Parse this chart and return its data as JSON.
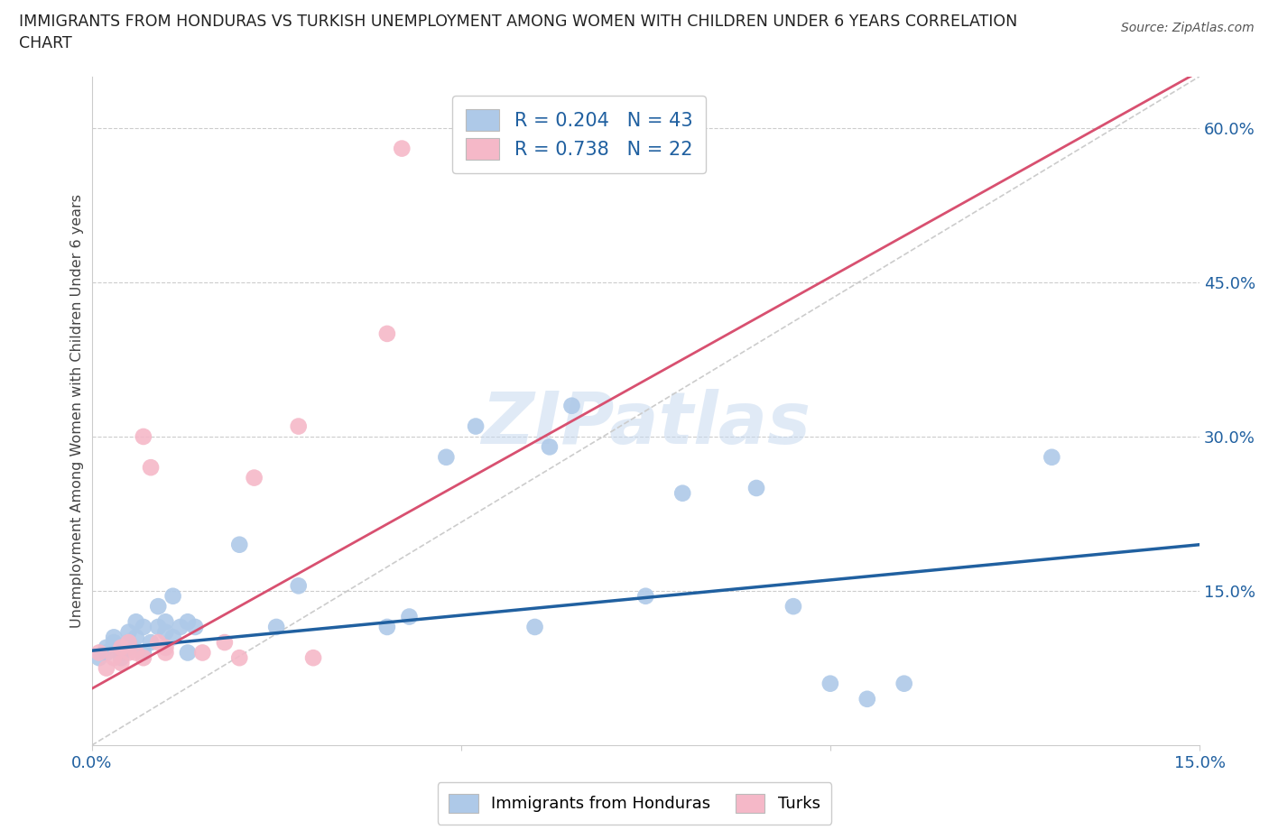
{
  "title_line1": "IMMIGRANTS FROM HONDURAS VS TURKISH UNEMPLOYMENT AMONG WOMEN WITH CHILDREN UNDER 6 YEARS CORRELATION",
  "title_line2": "CHART",
  "source": "Source: ZipAtlas.com",
  "ylabel": "Unemployment Among Women with Children Under 6 years",
  "xmin": 0.0,
  "xmax": 0.15,
  "ymin": 0.0,
  "ymax": 0.65,
  "yticks": [
    0.0,
    0.15,
    0.3,
    0.45,
    0.6
  ],
  "ytick_labels": [
    "",
    "15.0%",
    "30.0%",
    "45.0%",
    "60.0%"
  ],
  "xticks": [
    0.0,
    0.05,
    0.1,
    0.15
  ],
  "xtick_labels": [
    "0.0%",
    "",
    "",
    "15.0%"
  ],
  "blue_color": "#aec9e8",
  "pink_color": "#f5b8c8",
  "blue_line_color": "#2060a0",
  "pink_line_color": "#d85070",
  "ref_line_color": "#cccccc",
  "R_blue": 0.204,
  "N_blue": 43,
  "R_pink": 0.738,
  "N_pink": 22,
  "legend_label_blue": "Immigrants from Honduras",
  "legend_label_pink": "Turks",
  "watermark": "ZIPatlas",
  "blue_scatter_x": [
    0.001,
    0.002,
    0.002,
    0.003,
    0.003,
    0.004,
    0.004,
    0.005,
    0.005,
    0.005,
    0.006,
    0.006,
    0.007,
    0.007,
    0.008,
    0.009,
    0.009,
    0.01,
    0.01,
    0.011,
    0.011,
    0.012,
    0.013,
    0.013,
    0.014,
    0.02,
    0.025,
    0.028,
    0.04,
    0.043,
    0.048,
    0.052,
    0.06,
    0.062,
    0.065,
    0.075,
    0.08,
    0.09,
    0.095,
    0.1,
    0.105,
    0.11,
    0.13
  ],
  "blue_scatter_y": [
    0.085,
    0.09,
    0.095,
    0.1,
    0.105,
    0.085,
    0.09,
    0.1,
    0.095,
    0.11,
    0.105,
    0.12,
    0.09,
    0.115,
    0.1,
    0.115,
    0.135,
    0.11,
    0.12,
    0.105,
    0.145,
    0.115,
    0.09,
    0.12,
    0.115,
    0.195,
    0.115,
    0.155,
    0.115,
    0.125,
    0.28,
    0.31,
    0.115,
    0.29,
    0.33,
    0.145,
    0.245,
    0.25,
    0.135,
    0.06,
    0.045,
    0.06,
    0.28
  ],
  "pink_scatter_x": [
    0.001,
    0.002,
    0.003,
    0.004,
    0.004,
    0.005,
    0.005,
    0.006,
    0.007,
    0.007,
    0.008,
    0.009,
    0.01,
    0.01,
    0.015,
    0.018,
    0.02,
    0.022,
    0.028,
    0.03,
    0.04,
    0.042
  ],
  "pink_scatter_y": [
    0.09,
    0.075,
    0.085,
    0.08,
    0.095,
    0.09,
    0.1,
    0.09,
    0.085,
    0.3,
    0.27,
    0.1,
    0.09,
    0.095,
    0.09,
    0.1,
    0.085,
    0.26,
    0.31,
    0.085,
    0.4,
    0.58
  ],
  "blue_trend_x0": 0.0,
  "blue_trend_y0": 0.092,
  "blue_trend_x1": 0.15,
  "blue_trend_y1": 0.195,
  "pink_trend_x0": 0.0,
  "pink_trend_y0": 0.055,
  "pink_trend_x1": 0.15,
  "pink_trend_y1": 0.655
}
